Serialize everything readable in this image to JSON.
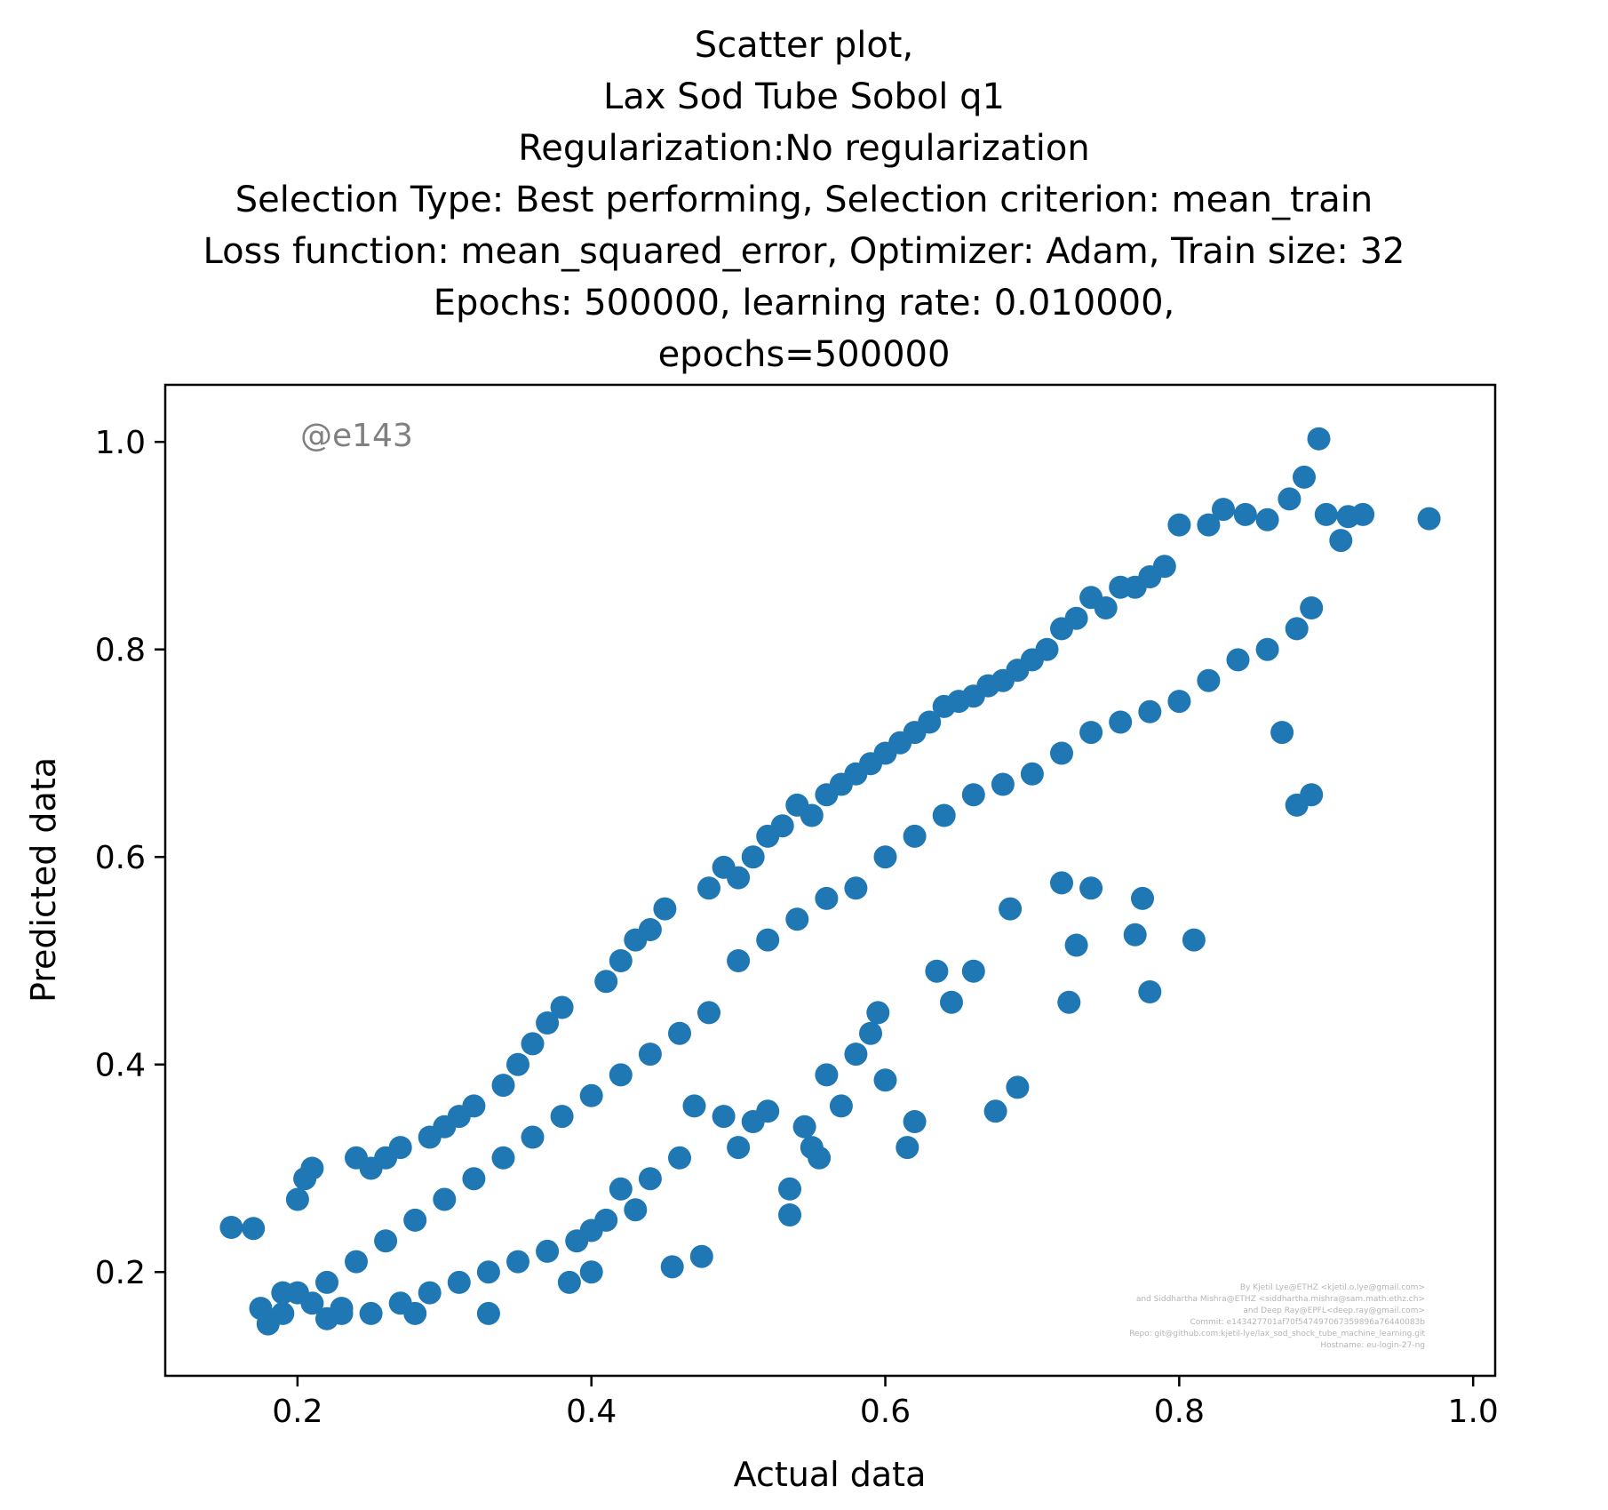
{
  "chart_data": {
    "type": "scatter",
    "title": [
      "Scatter plot,",
      "Lax Sod Tube Sobol q1",
      "Regularization:No regularization",
      "Selection Type: Best performing, Selection criterion: mean_train",
      "Loss function: mean_squared_error, Optimizer: Adam, Train size: 32",
      "Epochs: 500000, learning rate: 0.010000,",
      "epochs=500000"
    ],
    "xlabel": "Actual data",
    "ylabel": "Predicted data",
    "xlim": [
      0.11,
      1.015
    ],
    "ylim": [
      0.1,
      1.055
    ],
    "xticks": [
      0.2,
      0.4,
      0.6,
      0.8,
      1.0
    ],
    "xtick_labels": [
      "0.2",
      "0.4",
      "0.6",
      "0.8",
      "1.0"
    ],
    "yticks": [
      0.2,
      0.4,
      0.6,
      0.8,
      1.0
    ],
    "ytick_labels": [
      "0.2",
      "0.4",
      "0.6",
      "0.8",
      "1.0"
    ],
    "grid": false,
    "marker_color": "#1f77b4",
    "annotation": "@e143",
    "credits": [
      "By Kjetil Lye@ETHZ <kjetil.o.lye@gmail.com>",
      "and Siddhartha Mishra@ETHZ <siddhartha.mishra@sam.math.ethz.ch>",
      "and Deep Ray@EPFL<deep.ray@gmail.com>",
      "Commit: e143427701af70f547497067359896a76440083b",
      "Repo: git@github.com:kjetil-lye/lax_sod_shock_tube_machine_learning.git",
      "Hostname: eu-login-27-ng"
    ],
    "points": [
      [
        0.155,
        0.243
      ],
      [
        0.17,
        0.242
      ],
      [
        0.175,
        0.165
      ],
      [
        0.18,
        0.15
      ],
      [
        0.19,
        0.16
      ],
      [
        0.2,
        0.27
      ],
      [
        0.205,
        0.29
      ],
      [
        0.21,
        0.3
      ],
      [
        0.22,
        0.155
      ],
      [
        0.23,
        0.16
      ],
      [
        0.24,
        0.31
      ],
      [
        0.25,
        0.3
      ],
      [
        0.26,
        0.31
      ],
      [
        0.27,
        0.32
      ],
      [
        0.28,
        0.16
      ],
      [
        0.29,
        0.33
      ],
      [
        0.3,
        0.34
      ],
      [
        0.31,
        0.35
      ],
      [
        0.32,
        0.36
      ],
      [
        0.33,
        0.16
      ],
      [
        0.34,
        0.38
      ],
      [
        0.35,
        0.4
      ],
      [
        0.36,
        0.42
      ],
      [
        0.37,
        0.44
      ],
      [
        0.38,
        0.455
      ],
      [
        0.385,
        0.19
      ],
      [
        0.4,
        0.2
      ],
      [
        0.41,
        0.48
      ],
      [
        0.42,
        0.5
      ],
      [
        0.43,
        0.52
      ],
      [
        0.44,
        0.53
      ],
      [
        0.45,
        0.55
      ],
      [
        0.455,
        0.205
      ],
      [
        0.475,
        0.215
      ],
      [
        0.48,
        0.57
      ],
      [
        0.49,
        0.59
      ],
      [
        0.5,
        0.58
      ],
      [
        0.51,
        0.6
      ],
      [
        0.52,
        0.62
      ],
      [
        0.53,
        0.63
      ],
      [
        0.54,
        0.65
      ],
      [
        0.55,
        0.64
      ],
      [
        0.56,
        0.66
      ],
      [
        0.57,
        0.67
      ],
      [
        0.58,
        0.68
      ],
      [
        0.59,
        0.69
      ],
      [
        0.6,
        0.7
      ],
      [
        0.61,
        0.71
      ],
      [
        0.62,
        0.72
      ],
      [
        0.63,
        0.73
      ],
      [
        0.64,
        0.745
      ],
      [
        0.65,
        0.75
      ],
      [
        0.66,
        0.755
      ],
      [
        0.67,
        0.765
      ],
      [
        0.68,
        0.77
      ],
      [
        0.69,
        0.78
      ],
      [
        0.7,
        0.79
      ],
      [
        0.71,
        0.8
      ],
      [
        0.72,
        0.82
      ],
      [
        0.73,
        0.83
      ],
      [
        0.74,
        0.85
      ],
      [
        0.75,
        0.84
      ],
      [
        0.76,
        0.86
      ],
      [
        0.77,
        0.86
      ],
      [
        0.78,
        0.87
      ],
      [
        0.79,
        0.88
      ],
      [
        0.8,
        0.92
      ],
      [
        0.82,
        0.92
      ],
      [
        0.83,
        0.935
      ],
      [
        0.845,
        0.93
      ],
      [
        0.86,
        0.925
      ],
      [
        0.875,
        0.945
      ],
      [
        0.885,
        0.966
      ],
      [
        0.895,
        1.003
      ],
      [
        0.9,
        0.93
      ],
      [
        0.91,
        0.905
      ],
      [
        0.915,
        0.928
      ],
      [
        0.925,
        0.93
      ],
      [
        0.97,
        0.926
      ],
      [
        0.88,
        0.65
      ],
      [
        0.89,
        0.66
      ],
      [
        0.87,
        0.72
      ],
      [
        0.81,
        0.52
      ],
      [
        0.78,
        0.47
      ],
      [
        0.775,
        0.56
      ],
      [
        0.77,
        0.525
      ],
      [
        0.74,
        0.57
      ],
      [
        0.725,
        0.46
      ],
      [
        0.72,
        0.575
      ],
      [
        0.73,
        0.515
      ],
      [
        0.69,
        0.378
      ],
      [
        0.685,
        0.55
      ],
      [
        0.675,
        0.355
      ],
      [
        0.66,
        0.49
      ],
      [
        0.645,
        0.46
      ],
      [
        0.635,
        0.49
      ],
      [
        0.62,
        0.345
      ],
      [
        0.615,
        0.32
      ],
      [
        0.6,
        0.385
      ],
      [
        0.595,
        0.45
      ],
      [
        0.59,
        0.43
      ],
      [
        0.58,
        0.41
      ],
      [
        0.57,
        0.36
      ],
      [
        0.56,
        0.39
      ],
      [
        0.555,
        0.31
      ],
      [
        0.55,
        0.32
      ],
      [
        0.545,
        0.34
      ],
      [
        0.535,
        0.28
      ],
      [
        0.535,
        0.255
      ],
      [
        0.52,
        0.355
      ],
      [
        0.51,
        0.345
      ],
      [
        0.5,
        0.32
      ],
      [
        0.49,
        0.35
      ],
      [
        0.47,
        0.36
      ],
      [
        0.46,
        0.31
      ],
      [
        0.44,
        0.29
      ],
      [
        0.43,
        0.26
      ],
      [
        0.42,
        0.28
      ],
      [
        0.41,
        0.25
      ],
      [
        0.4,
        0.24
      ],
      [
        0.39,
        0.23
      ],
      [
        0.37,
        0.22
      ],
      [
        0.35,
        0.21
      ],
      [
        0.33,
        0.2
      ],
      [
        0.31,
        0.19
      ],
      [
        0.29,
        0.18
      ],
      [
        0.27,
        0.17
      ],
      [
        0.25,
        0.16
      ],
      [
        0.23,
        0.165
      ],
      [
        0.21,
        0.17
      ],
      [
        0.19,
        0.18
      ],
      [
        0.6,
        0.6
      ],
      [
        0.62,
        0.62
      ],
      [
        0.64,
        0.64
      ],
      [
        0.66,
        0.66
      ],
      [
        0.68,
        0.67
      ],
      [
        0.7,
        0.68
      ],
      [
        0.72,
        0.7
      ],
      [
        0.74,
        0.72
      ],
      [
        0.76,
        0.73
      ],
      [
        0.78,
        0.74
      ],
      [
        0.8,
        0.75
      ],
      [
        0.82,
        0.77
      ],
      [
        0.84,
        0.79
      ],
      [
        0.86,
        0.8
      ],
      [
        0.88,
        0.82
      ],
      [
        0.89,
        0.84
      ],
      [
        0.5,
        0.5
      ],
      [
        0.52,
        0.52
      ],
      [
        0.54,
        0.54
      ],
      [
        0.56,
        0.56
      ],
      [
        0.58,
        0.57
      ],
      [
        0.48,
        0.45
      ],
      [
        0.46,
        0.43
      ],
      [
        0.44,
        0.41
      ],
      [
        0.42,
        0.39
      ],
      [
        0.4,
        0.37
      ],
      [
        0.38,
        0.35
      ],
      [
        0.36,
        0.33
      ],
      [
        0.34,
        0.31
      ],
      [
        0.32,
        0.29
      ],
      [
        0.3,
        0.27
      ],
      [
        0.28,
        0.25
      ],
      [
        0.26,
        0.23
      ],
      [
        0.24,
        0.21
      ],
      [
        0.22,
        0.19
      ],
      [
        0.2,
        0.18
      ]
    ]
  }
}
